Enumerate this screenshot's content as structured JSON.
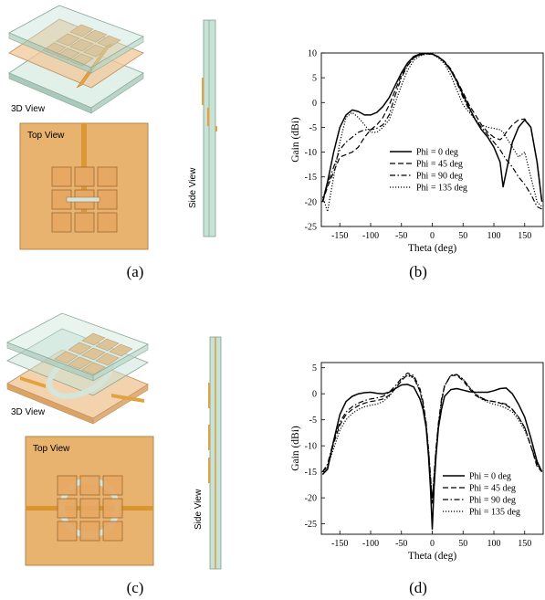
{
  "figure": {
    "captions": [
      "(a)",
      "(b)",
      "(c)",
      "(d)"
    ]
  },
  "illustrations": {
    "a": {
      "view_3d": "3D View",
      "view_top": "Top View",
      "view_side": "Side View"
    },
    "c": {
      "view_3d": "3D View",
      "view_top": "Top View",
      "view_side": "Side View"
    }
  },
  "colors": {
    "substrate": "#f0c89a",
    "substrate_dark": "#d9a464",
    "glass": "#c8e3d6",
    "patch": "#e9b06f",
    "feed": "#e3a23f"
  },
  "chart_data": [
    {
      "type": "line",
      "panel": "b",
      "xlabel": "Theta (deg)",
      "ylabel": "Gain (dBi)",
      "xlim": [
        -180,
        180
      ],
      "ylim": [
        -25,
        10
      ],
      "xticks": [
        -150,
        -100,
        -50,
        0,
        50,
        100,
        150
      ],
      "yticks": [
        -25,
        -20,
        -15,
        -10,
        -5,
        0,
        5,
        10
      ],
      "legend_position": "lower-center",
      "x": [
        -178,
        -170,
        -160,
        -150,
        -140,
        -130,
        -120,
        -110,
        -100,
        -90,
        -80,
        -70,
        -60,
        -50,
        -40,
        -30,
        -20,
        -10,
        0,
        10,
        20,
        30,
        40,
        50,
        60,
        70,
        80,
        90,
        100,
        110,
        115,
        120,
        130,
        140,
        150,
        160,
        170,
        178
      ],
      "series": [
        {
          "name": "Phi = 0 deg",
          "style": "solid",
          "values": [
            -20,
            -16,
            -10,
            -5,
            -2.5,
            -1.5,
            -1.8,
            -2.5,
            -2.5,
            -2,
            -0.8,
            1,
            3.5,
            6,
            8,
            9.3,
            9.8,
            9.9,
            9.8,
            9.2,
            8.2,
            6.5,
            4.3,
            1.5,
            -1,
            -3.5,
            -5.5,
            -7,
            -9,
            -12,
            -17,
            -14,
            -8,
            -5,
            -3.5,
            -5,
            -12,
            -20
          ]
        },
        {
          "name": "Phi = 45 deg",
          "style": "dashed",
          "values": [
            -20,
            -17,
            -14,
            -11,
            -10.5,
            -10,
            -9,
            -7,
            -5.5,
            -4.5,
            -3,
            -0.5,
            2.5,
            5.5,
            7.5,
            9,
            9.6,
            9.8,
            9.8,
            9.2,
            8.3,
            6.8,
            4.5,
            2,
            -0.5,
            -2.5,
            -4.5,
            -6,
            -7,
            -7.5,
            -7,
            -6,
            -4.5,
            -3.5,
            -3.3,
            -5,
            -12,
            -20
          ]
        },
        {
          "name": "Phi = 90 deg",
          "style": "dashdot",
          "values": [
            -20,
            -16.5,
            -13,
            -9.5,
            -8,
            -7,
            -6,
            -5.5,
            -5.5,
            -5.2,
            -4.5,
            -2.5,
            1.5,
            5,
            7.5,
            9,
            9.7,
            9.9,
            9.8,
            9.2,
            8.2,
            6.5,
            4,
            1,
            -1.5,
            -3.5,
            -5,
            -6.5,
            -8,
            -9.5,
            -10.5,
            -11.5,
            -13,
            -15,
            -16.5,
            -18.5,
            -21,
            -21.5
          ]
        },
        {
          "name": "Phi = 135 deg",
          "style": "dotted",
          "values": [
            -19,
            -22,
            -15,
            -8,
            -3,
            -2,
            -3,
            -4.5,
            -6,
            -6,
            -5,
            -3.5,
            0,
            3.5,
            6.5,
            8.5,
            9.4,
            9.8,
            9.7,
            9,
            7.8,
            5.5,
            2.5,
            -0.5,
            -2,
            -3.5,
            -4.5,
            -5,
            -5.2,
            -5.5,
            -6,
            -7,
            -9,
            -11,
            -10,
            -15,
            -20,
            -21
          ]
        }
      ]
    },
    {
      "type": "line",
      "panel": "d",
      "xlabel": "Theta (deg)",
      "ylabel": "Gain (dBi)",
      "xlim": [
        -180,
        180
      ],
      "ylim": [
        -27,
        6
      ],
      "xticks": [
        -150,
        -100,
        -50,
        0,
        50,
        100,
        150
      ],
      "yticks": [
        -25,
        -20,
        -15,
        -10,
        -5,
        0,
        5
      ],
      "legend_position": "lower-right",
      "x": [
        -178,
        -170,
        -160,
        -150,
        -140,
        -130,
        -120,
        -110,
        -100,
        -90,
        -80,
        -70,
        -60,
        -50,
        -40,
        -30,
        -20,
        -15,
        -10,
        -6,
        -3,
        0,
        3,
        6,
        10,
        15,
        20,
        30,
        40,
        50,
        60,
        70,
        80,
        90,
        100,
        110,
        120,
        130,
        140,
        150,
        160,
        170,
        178
      ],
      "series": [
        {
          "name": "Phi = 0 deg",
          "style": "solid",
          "values": [
            -15.5,
            -14.5,
            -9,
            -4,
            -1.5,
            -0.5,
            0,
            0.2,
            0.3,
            0.1,
            0,
            0.3,
            1,
            1.7,
            1.8,
            1.3,
            -1,
            -3,
            -6.5,
            -12,
            -18,
            -26,
            -18,
            -12,
            -6.5,
            -3,
            -0.5,
            0.8,
            1,
            0.7,
            0.4,
            0.3,
            0.3,
            0.3,
            0.6,
            1,
            1.1,
            0,
            -2,
            -4.5,
            -8.5,
            -13,
            -15
          ]
        },
        {
          "name": "Phi = 45 deg",
          "style": "dashed",
          "values": [
            -15,
            -14,
            -9.5,
            -6,
            -4,
            -3,
            -2.3,
            -1.8,
            -1.5,
            -1.3,
            -1,
            -0.3,
            1,
            2.5,
            3.7,
            3.2,
            0.5,
            -2,
            -6,
            -11,
            -16,
            -21,
            -16,
            -11,
            -6,
            -1.5,
            1.5,
            3.5,
            3.5,
            2.5,
            1,
            -0.3,
            -1,
            -1.3,
            -1.5,
            -1.8,
            -2.2,
            -3,
            -4.5,
            -6.5,
            -10,
            -14,
            -15
          ]
        },
        {
          "name": "Phi = 90 deg",
          "style": "dashdot",
          "values": [
            -15,
            -13.5,
            -9,
            -5.5,
            -3.5,
            -2.5,
            -1.8,
            -1.3,
            -1,
            -0.8,
            -0.5,
            0.3,
            1.5,
            3,
            4,
            3.5,
            1,
            -1.5,
            -5.5,
            -10.5,
            -15.5,
            -21,
            -15.5,
            -10.5,
            -5.5,
            -1,
            1.5,
            3.6,
            3.7,
            2.8,
            1.3,
            0,
            -0.8,
            -1.3,
            -1.5,
            -1.7,
            -2,
            -3,
            -4.5,
            -6.5,
            -10,
            -13.5,
            -15
          ]
        },
        {
          "name": "Phi = 135 deg",
          "style": "dotted",
          "values": [
            -15.5,
            -14,
            -10.5,
            -7,
            -5,
            -3.8,
            -3,
            -2.5,
            -2.2,
            -2,
            -1.5,
            -0.5,
            1,
            2.8,
            3.5,
            3,
            0.5,
            -2,
            -6,
            -11,
            -16,
            -21,
            -16,
            -11,
            -6,
            -1.5,
            1.5,
            3.5,
            3.7,
            2.8,
            1.3,
            0,
            -1,
            -1.6,
            -2,
            -2.3,
            -2.8,
            -3.5,
            -5,
            -7,
            -10,
            -13.5,
            -15
          ]
        }
      ]
    }
  ]
}
